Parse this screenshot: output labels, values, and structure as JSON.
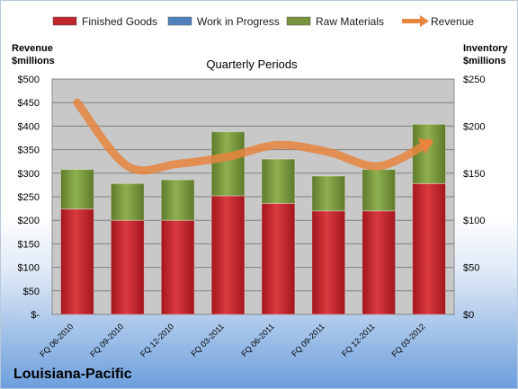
{
  "chart_data": {
    "type": "bar",
    "stacked": true,
    "title": "Quarterly Periods",
    "company": "Louisiana-Pacific",
    "y_left_label_lines": [
      "Revenue",
      "$millions"
    ],
    "y_right_label_lines": [
      "Inventory",
      "$millions"
    ],
    "categories": [
      "FQ 06-2010",
      "FQ 09-2010",
      "FQ 12-2010",
      "FQ 03-2011",
      "FQ 06-2011",
      "FQ 09-2011",
      "FQ 12-2011",
      "FQ 03-2012"
    ],
    "series": [
      {
        "name": "Finished Goods",
        "type": "bar",
        "axis": "right",
        "color": "#c0272d",
        "values": [
          112,
          100,
          100,
          126,
          118,
          110,
          110,
          139
        ]
      },
      {
        "name": "Work in Progress",
        "type": "bar",
        "axis": "right",
        "color": "#4f81bd",
        "values": [
          0,
          0,
          0,
          0,
          0,
          0,
          0,
          0
        ]
      },
      {
        "name": "Raw Materials",
        "type": "bar",
        "axis": "right",
        "color": "#77933c",
        "values": [
          42,
          39,
          43,
          68,
          47,
          37,
          44,
          63
        ]
      },
      {
        "name": "Revenue",
        "type": "line",
        "axis": "left",
        "color": "#e8843d",
        "values": [
          450,
          315,
          320,
          335,
          360,
          345,
          315,
          365
        ]
      }
    ],
    "y_left": {
      "min": 0,
      "max": 500,
      "step": 50,
      "tick_labels": [
        "$-",
        "$50",
        "$100",
        "$150",
        "$200",
        "$250",
        "$300",
        "$350",
        "$400",
        "$450",
        "$500"
      ]
    },
    "y_right": {
      "min": 0,
      "max": 250,
      "step": 50,
      "tick_labels": [
        "$0",
        "$50",
        "$100",
        "$150",
        "$200",
        "$250"
      ]
    },
    "grid": true,
    "legend_position": "top"
  }
}
